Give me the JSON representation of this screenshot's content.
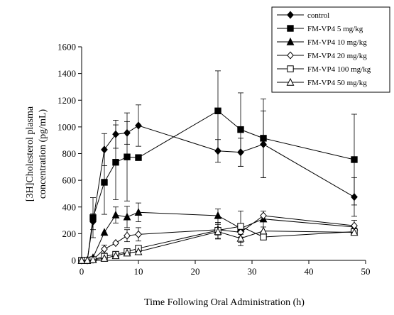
{
  "chart_data": {
    "type": "line",
    "xlabel": "Time Following Oral Administration (h)",
    "ylabel_lines": [
      "[3H]Cholesterol plasma",
      "concentration (pg/mL)"
    ],
    "xlim": [
      0,
      50
    ],
    "ylim": [
      0,
      1600
    ],
    "x_ticks": [
      "0",
      "10",
      "20",
      "30",
      "40",
      "50"
    ],
    "y_ticks": [
      "0",
      "200",
      "400",
      "600",
      "800",
      "1000",
      "1200",
      "1400",
      "1600"
    ],
    "grid": false,
    "legend_position": "top-right",
    "x": [
      0,
      1,
      2,
      4,
      6,
      8,
      10,
      24,
      28,
      32,
      48
    ],
    "series": [
      {
        "name": "control",
        "marker": "diamond-filled",
        "values": [
          0,
          0,
          290,
          830,
          945,
          955,
          1010,
          820,
          810,
          870,
          475
        ],
        "errors": [
          0,
          0,
          60,
          120,
          105,
          85,
          155,
          85,
          105,
          250,
          145
        ]
      },
      {
        "name": "FM-VP4 5 mg/kg",
        "marker": "square-filled",
        "values": [
          0,
          0,
          320,
          585,
          735,
          775,
          770,
          1120,
          980,
          915,
          755
        ],
        "errors": [
          0,
          0,
          150,
          240,
          280,
          330,
          0,
          300,
          275,
          295,
          340
        ]
      },
      {
        "name": "FM-VP4 10 mg/kg",
        "marker": "triangle-filled",
        "values": [
          0,
          0,
          20,
          210,
          340,
          325,
          360,
          335,
          240,
          310,
          250
        ],
        "errors": [
          0,
          0,
          0,
          0,
          60,
          80,
          70,
          50,
          130,
          60,
          50
        ]
      },
      {
        "name": "FM-VP4 20 mg/kg",
        "marker": "diamond-open",
        "values": [
          0,
          0,
          5,
          85,
          130,
          185,
          195,
          230,
          210,
          335,
          260
        ],
        "errors": [
          0,
          0,
          0,
          30,
          0,
          45,
          50,
          40,
          35,
          0,
          0
        ]
      },
      {
        "name": "FM-VP4 100 mg/kg",
        "marker": "square-open",
        "values": [
          0,
          0,
          5,
          30,
          45,
          65,
          90,
          225,
          255,
          175,
          215
        ],
        "errors": [
          0,
          0,
          0,
          0,
          0,
          0,
          0,
          60,
          0,
          0,
          0
        ]
      },
      {
        "name": "FM-VP4 50 mg/kg",
        "marker": "triangle-open",
        "values": [
          0,
          0,
          5,
          15,
          35,
          55,
          65,
          215,
          165,
          220,
          210
        ],
        "errors": [
          0,
          0,
          0,
          0,
          0,
          0,
          0,
          55,
          30,
          0,
          0
        ]
      }
    ]
  }
}
